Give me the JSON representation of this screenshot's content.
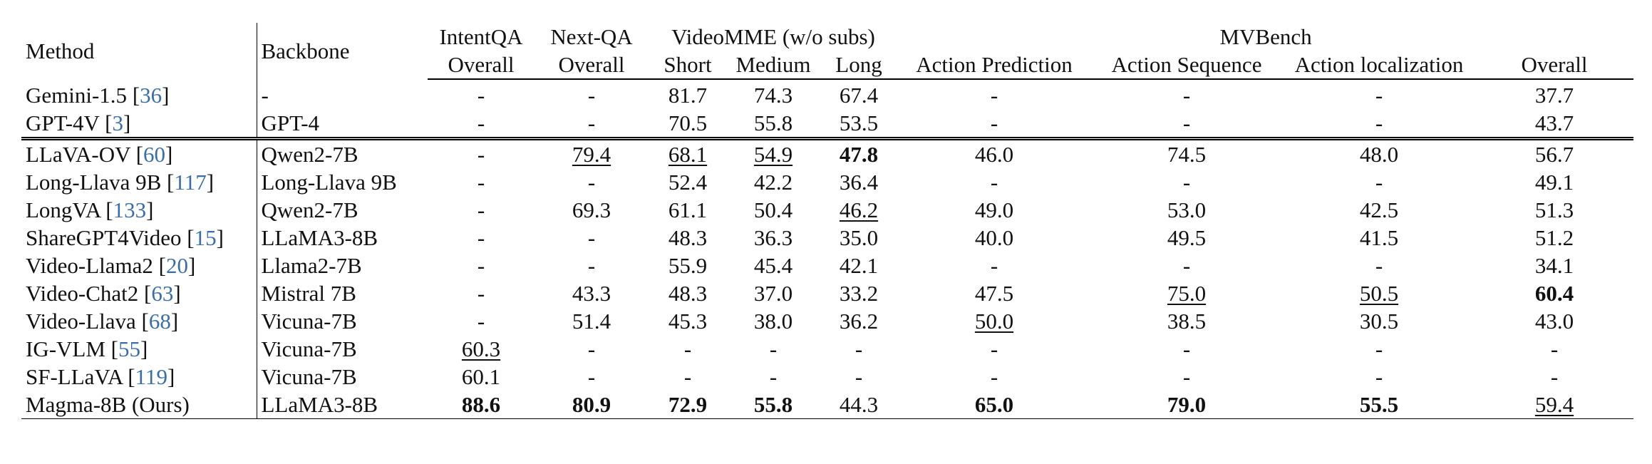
{
  "header": {
    "method": "Method",
    "backbone": "Backbone",
    "intentqa": "IntentQA",
    "nextqa": "Next-QA",
    "videomme": "VideoMME (w/o subs)",
    "mvbench": "MVBench",
    "sub": [
      "Overall",
      "Overall",
      "Short",
      "Medium",
      "Long",
      "Action Prediction",
      "Action Sequence",
      "Action localization",
      "Overall"
    ]
  },
  "rows": [
    {
      "method": "Gemini-1.5 ",
      "ref": "36",
      "backbone": "-",
      "cells": [
        {
          "v": "-"
        },
        {
          "v": "-"
        },
        {
          "v": "81.7"
        },
        {
          "v": "74.3"
        },
        {
          "v": "67.4"
        },
        {
          "v": "-"
        },
        {
          "v": "-"
        },
        {
          "v": "-"
        },
        {
          "v": "37.7"
        }
      ]
    },
    {
      "method": "GPT-4V ",
      "ref": "3",
      "backbone": "GPT-4",
      "cells": [
        {
          "v": "-"
        },
        {
          "v": "-"
        },
        {
          "v": "70.5"
        },
        {
          "v": "55.8"
        },
        {
          "v": "53.5"
        },
        {
          "v": "-"
        },
        {
          "v": "-"
        },
        {
          "v": "-"
        },
        {
          "v": "43.7"
        }
      ]
    },
    {
      "method": "LLaVA-OV ",
      "ref": "60",
      "backbone": "Qwen2-7B",
      "cells": [
        {
          "v": "-"
        },
        {
          "v": "79.4",
          "s": "u"
        },
        {
          "v": "68.1",
          "s": "u"
        },
        {
          "v": "54.9",
          "s": "u"
        },
        {
          "v": "47.8",
          "s": "b"
        },
        {
          "v": "46.0"
        },
        {
          "v": "74.5"
        },
        {
          "v": "48.0"
        },
        {
          "v": "56.7"
        }
      ]
    },
    {
      "method": "Long-Llava 9B ",
      "ref": "117",
      "backbone": "Long-Llava 9B",
      "cells": [
        {
          "v": "-"
        },
        {
          "v": "-"
        },
        {
          "v": "52.4"
        },
        {
          "v": "42.2"
        },
        {
          "v": "36.4"
        },
        {
          "v": "-"
        },
        {
          "v": "-"
        },
        {
          "v": "-"
        },
        {
          "v": "49.1"
        }
      ]
    },
    {
      "method": "LongVA ",
      "ref": "133",
      "backbone": "Qwen2-7B",
      "cells": [
        {
          "v": "-"
        },
        {
          "v": "69.3"
        },
        {
          "v": "61.1"
        },
        {
          "v": "50.4"
        },
        {
          "v": "46.2",
          "s": "u"
        },
        {
          "v": "49.0"
        },
        {
          "v": "53.0"
        },
        {
          "v": "42.5"
        },
        {
          "v": "51.3"
        }
      ]
    },
    {
      "method": "ShareGPT4Video ",
      "ref": "15",
      "backbone": "LLaMA3-8B",
      "cells": [
        {
          "v": "-"
        },
        {
          "v": "-"
        },
        {
          "v": "48.3"
        },
        {
          "v": "36.3"
        },
        {
          "v": "35.0"
        },
        {
          "v": "40.0"
        },
        {
          "v": "49.5"
        },
        {
          "v": "41.5"
        },
        {
          "v": "51.2"
        }
      ]
    },
    {
      "method": "Video-Llama2 ",
      "ref": "20",
      "backbone": "Llama2-7B",
      "cells": [
        {
          "v": "-"
        },
        {
          "v": "-"
        },
        {
          "v": "55.9"
        },
        {
          "v": "45.4"
        },
        {
          "v": "42.1"
        },
        {
          "v": "-"
        },
        {
          "v": "-"
        },
        {
          "v": "-"
        },
        {
          "v": "34.1"
        }
      ]
    },
    {
      "method": "Video-Chat2 ",
      "ref": "63",
      "backbone": "Mistral 7B",
      "cells": [
        {
          "v": "-"
        },
        {
          "v": "43.3"
        },
        {
          "v": "48.3"
        },
        {
          "v": "37.0"
        },
        {
          "v": "33.2"
        },
        {
          "v": "47.5"
        },
        {
          "v": "75.0",
          "s": "u"
        },
        {
          "v": "50.5",
          "s": "u"
        },
        {
          "v": "60.4",
          "s": "b"
        }
      ]
    },
    {
      "method": "Video-Llava ",
      "ref": "68",
      "backbone": "Vicuna-7B",
      "cells": [
        {
          "v": "-"
        },
        {
          "v": "51.4"
        },
        {
          "v": "45.3"
        },
        {
          "v": "38.0"
        },
        {
          "v": "36.2"
        },
        {
          "v": "50.0",
          "s": "u"
        },
        {
          "v": "38.5"
        },
        {
          "v": "30.5"
        },
        {
          "v": "43.0"
        }
      ]
    },
    {
      "method": "IG-VLM ",
      "ref": "55",
      "backbone": "Vicuna-7B",
      "cells": [
        {
          "v": "60.3",
          "s": "u"
        },
        {
          "v": "-"
        },
        {
          "v": "-"
        },
        {
          "v": "-"
        },
        {
          "v": "-"
        },
        {
          "v": "-"
        },
        {
          "v": "-"
        },
        {
          "v": "-"
        },
        {
          "v": "-"
        }
      ]
    },
    {
      "method": "SF-LLaVA ",
      "ref": "119",
      "backbone": "Vicuna-7B",
      "cells": [
        {
          "v": "60.1"
        },
        {
          "v": "-"
        },
        {
          "v": "-"
        },
        {
          "v": "-"
        },
        {
          "v": "-"
        },
        {
          "v": "-"
        },
        {
          "v": "-"
        },
        {
          "v": "-"
        },
        {
          "v": "-"
        }
      ]
    },
    {
      "method": "Magma-8B (Ours)",
      "ref": "",
      "backbone": "LLaMA3-8B",
      "cells": [
        {
          "v": "88.6",
          "s": "b"
        },
        {
          "v": "80.9",
          "s": "b"
        },
        {
          "v": "72.9",
          "s": "b"
        },
        {
          "v": "55.8",
          "s": "b"
        },
        {
          "v": "44.3"
        },
        {
          "v": "65.0",
          "s": "b"
        },
        {
          "v": "79.0",
          "s": "b"
        },
        {
          "v": "55.5",
          "s": "b"
        },
        {
          "v": "59.4",
          "s": "u"
        }
      ]
    }
  ]
}
